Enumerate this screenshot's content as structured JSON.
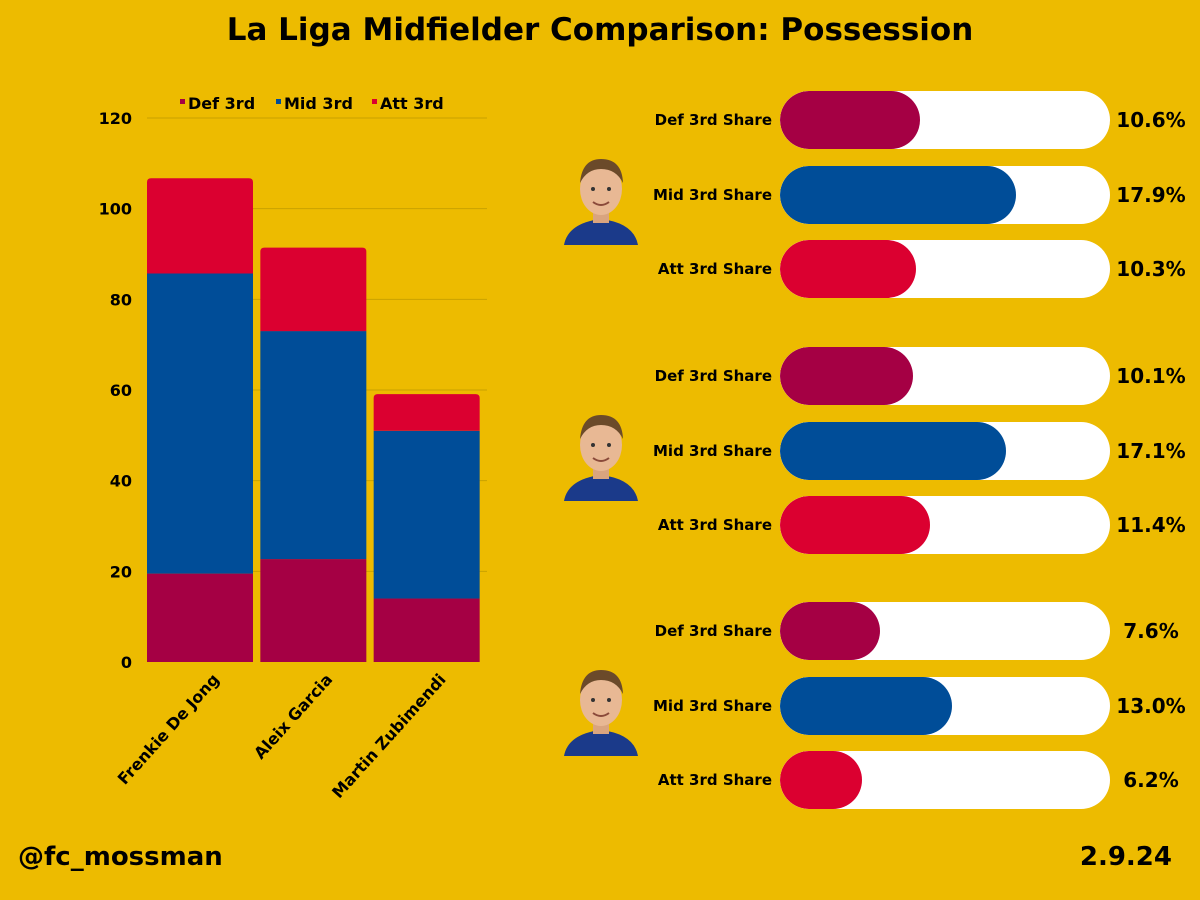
{
  "title": "La Liga Midfielder Comparison: Possession",
  "colors": {
    "background": "#EDBB00",
    "def": "#A50044",
    "mid": "#004D98",
    "att": "#DB0030"
  },
  "chart_data": {
    "type": "bar",
    "stacked": true,
    "title": "La Liga Midfielder Comparison: Possession",
    "xlabel": "",
    "ylabel": "",
    "categories": [
      "Frenkie De Jong",
      "Aleix Garcia",
      "Martin Zubimendi"
    ],
    "series": [
      {
        "name": "Def 3rd",
        "color": "#A50044",
        "values": [
          19.5,
          22.7,
          14.0
        ]
      },
      {
        "name": "Mid 3rd",
        "color": "#004D98",
        "values": [
          66.2,
          50.3,
          37.0
        ]
      },
      {
        "name": "Att 3rd",
        "color": "#DB0030",
        "values": [
          21.0,
          18.4,
          8.1
        ]
      }
    ],
    "ylim": [
      0,
      120
    ],
    "yticks": [
      0,
      20,
      40,
      60,
      80,
      100,
      120
    ],
    "grid": true,
    "legend_position": "top"
  },
  "players": [
    {
      "name": "Frenkie De Jong",
      "photo_icon": "player-portrait-icon",
      "shares": [
        {
          "label": "Def 3rd Share",
          "value": 10.6,
          "display": "10.6%",
          "color": "#A50044"
        },
        {
          "label": "Mid 3rd Share",
          "value": 17.9,
          "display": "17.9%",
          "color": "#004D98"
        },
        {
          "label": "Att 3rd Share",
          "value": 10.3,
          "display": "10.3%",
          "color": "#DB0030"
        }
      ]
    },
    {
      "name": "Aleix Garcia",
      "photo_icon": "player-portrait-icon",
      "shares": [
        {
          "label": "Def 3rd Share",
          "value": 10.1,
          "display": "10.1%",
          "color": "#A50044"
        },
        {
          "label": "Mid 3rd Share",
          "value": 17.1,
          "display": "17.1%",
          "color": "#004D98"
        },
        {
          "label": "Att 3rd Share",
          "value": 11.4,
          "display": "11.4%",
          "color": "#DB0030"
        }
      ]
    },
    {
      "name": "Martin Zubimendi",
      "photo_icon": "player-portrait-icon",
      "shares": [
        {
          "label": "Def 3rd Share",
          "value": 7.6,
          "display": "7.6%",
          "color": "#A50044"
        },
        {
          "label": "Mid 3rd Share",
          "value": 13.0,
          "display": "13.0%",
          "color": "#004D98"
        },
        {
          "label": "Att 3rd Share",
          "value": 6.2,
          "display": "6.2%",
          "color": "#DB0030"
        }
      ]
    }
  ],
  "share_scale_max": 25,
  "footer": {
    "handle": "@fc_mossman",
    "date": "2.9.24"
  }
}
